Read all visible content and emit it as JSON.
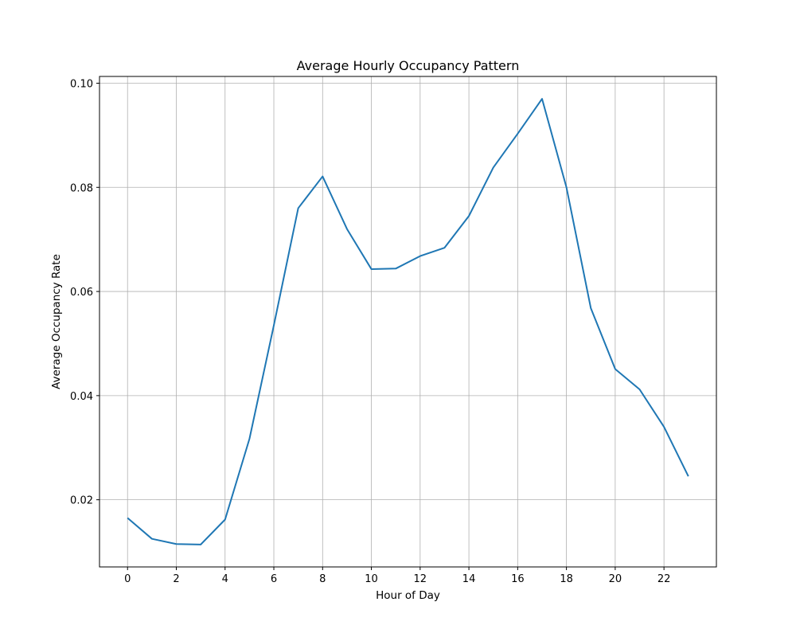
{
  "chart_data": {
    "type": "line",
    "title": "Average Hourly Occupancy Pattern",
    "xlabel": "Hour of Day",
    "ylabel": "Average Occupancy Rate",
    "x": [
      0,
      1,
      2,
      3,
      4,
      5,
      6,
      7,
      8,
      9,
      10,
      11,
      12,
      13,
      14,
      15,
      16,
      17,
      18,
      19,
      20,
      21,
      22,
      23
    ],
    "series": [
      {
        "values": [
          0.0165,
          0.0125,
          0.0115,
          0.0114,
          0.0162,
          0.0317,
          0.0535,
          0.076,
          0.0821,
          0.072,
          0.0643,
          0.0644,
          0.0668,
          0.0684,
          0.0745,
          0.0838,
          0.0903,
          0.097,
          0.08,
          0.0568,
          0.0451,
          0.0412,
          0.034,
          0.0245
        ],
        "color": "#1f77b4"
      }
    ],
    "xlim": [
      -1.15,
      24.15
    ],
    "ylim": [
      0.0071,
      0.1013
    ],
    "xticks": [
      0,
      2,
      4,
      6,
      8,
      10,
      12,
      14,
      16,
      18,
      20,
      22
    ],
    "yticks": [
      0.02,
      0.04,
      0.06,
      0.08,
      0.1
    ],
    "ytick_labels": [
      "0.02",
      "0.04",
      "0.06",
      "0.08",
      "0.10"
    ],
    "grid": true,
    "legend": "none"
  }
}
